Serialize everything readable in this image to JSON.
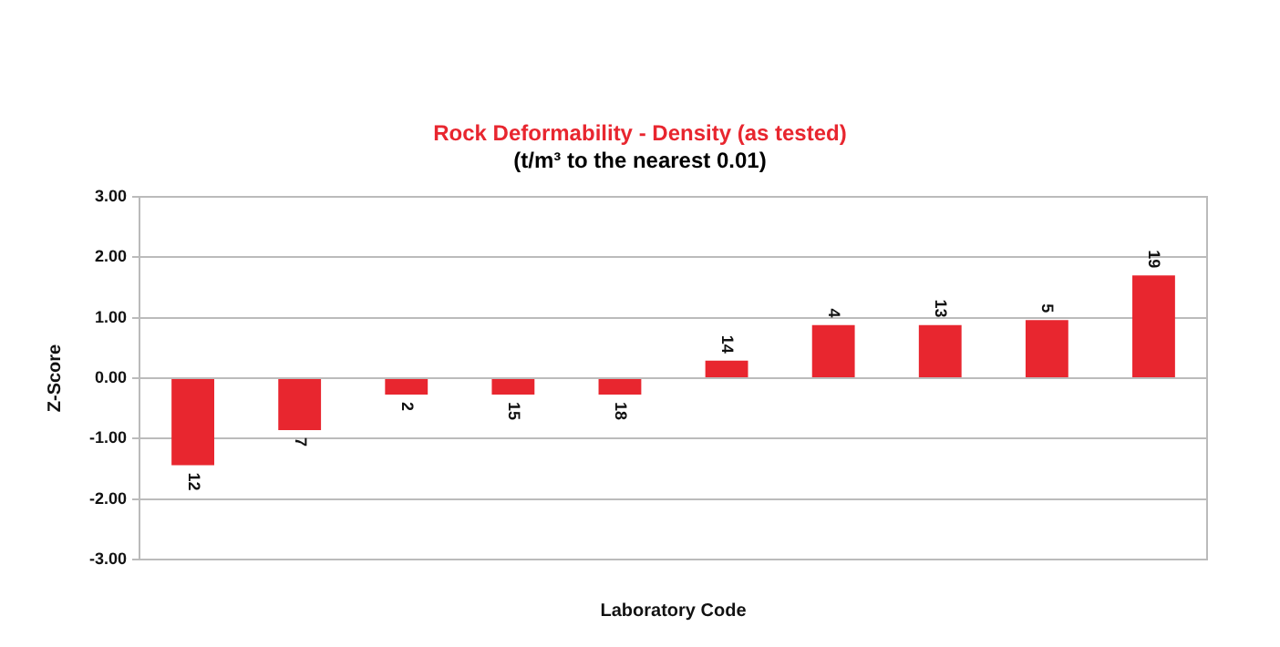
{
  "chart_data": {
    "type": "bar",
    "title": "Rock Deformability - Density (as tested)",
    "subtitle": "(t/m³ to the nearest 0.01)",
    "xlabel": "Laboratory Code",
    "ylabel": "Z-Score",
    "categories": [
      "12",
      "7",
      "2",
      "15",
      "18",
      "14",
      "4",
      "13",
      "5",
      "19"
    ],
    "values": [
      -1.44,
      -0.86,
      -0.27,
      -0.27,
      -0.27,
      0.29,
      0.88,
      0.88,
      0.96,
      1.7
    ],
    "color": "#e8262f",
    "ylim": [
      -3,
      3
    ],
    "yticks": [
      {
        "value": -3,
        "label": "-3.00"
      },
      {
        "value": -2,
        "label": "-2.00"
      },
      {
        "value": -1,
        "label": "-1.00"
      },
      {
        "value": 0,
        "label": "0.00"
      },
      {
        "value": 1,
        "label": "1.00"
      },
      {
        "value": 2,
        "label": "2.00"
      },
      {
        "value": 3,
        "label": "3.00"
      }
    ],
    "grid": "y",
    "legend": false,
    "tick_labels": "y"
  }
}
